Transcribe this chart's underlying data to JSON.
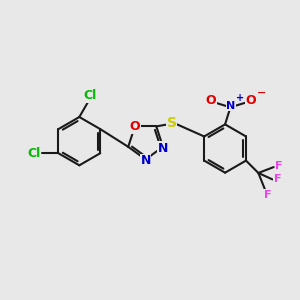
{
  "bg_color": "#e8e8e8",
  "bond_color": "#1a1a1a",
  "bond_width": 1.5,
  "atom_colors": {
    "C": "#1a1a1a",
    "Cl": "#00bb00",
    "O": "#dd0000",
    "N": "#0000cc",
    "S": "#cccc00",
    "F": "#ee44ee"
  },
  "font_size": 9,
  "xlim": [
    0,
    10
  ],
  "ylim": [
    0,
    10
  ]
}
